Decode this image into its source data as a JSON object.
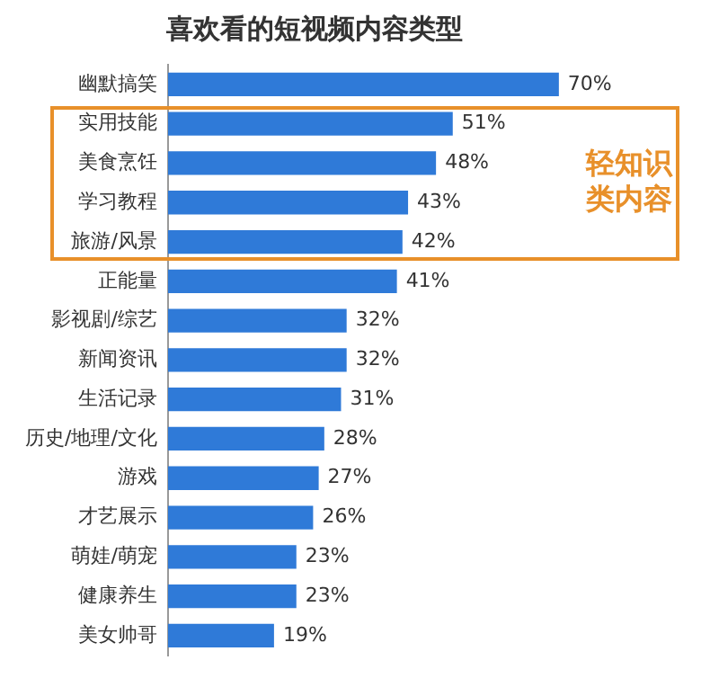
{
  "chart_data": {
    "type": "bar",
    "orientation": "horizontal",
    "title": "喜欢看的短视频内容类型",
    "categories": [
      "幽默搞笑",
      "实用技能",
      "美食烹饪",
      "学习教程",
      "旅游/风景",
      "正能量",
      "影视剧/综艺",
      "新闻资讯",
      "生活记录",
      "历史/地理/文化",
      "游戏",
      "才艺展示",
      "萌娃/萌宠",
      "健康养生",
      "美女帅哥"
    ],
    "values": [
      70,
      51,
      48,
      43,
      42,
      41,
      32,
      32,
      31,
      28,
      27,
      26,
      23,
      23,
      19
    ],
    "value_labels": [
      "70%",
      "51%",
      "48%",
      "43%",
      "42%",
      "41%",
      "32%",
      "32%",
      "31%",
      "28%",
      "27%",
      "26%",
      "23%",
      "23%",
      "19%"
    ],
    "color": "#2f7ad8",
    "tick_labels": "y",
    "grid": false,
    "legend": false,
    "annotations": [
      "轻知识类内容"
    ]
  }
}
